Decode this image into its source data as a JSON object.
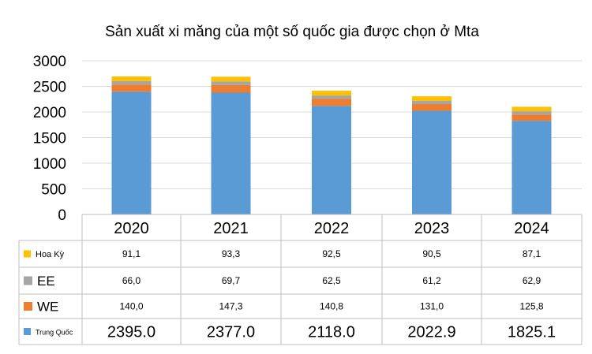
{
  "chart_data": {
    "type": "bar",
    "stacked": true,
    "title": "Sản xuất xi măng của một số quốc gia được chọn ở Mta",
    "categories": [
      "2020",
      "2021",
      "2022",
      "2023",
      "2024"
    ],
    "ylim": [
      0,
      3000
    ],
    "yticks": [
      "0",
      "500",
      "1000",
      "1500",
      "2000",
      "2500",
      "3000"
    ],
    "grid": true,
    "legend_position": "table-left",
    "series": [
      {
        "name": "Trung Quốc",
        "color": "#5B9BD5",
        "values": [
          2395.0,
          2377.0,
          2118.0,
          2022.9,
          1825.1
        ],
        "labels": [
          "2395.0",
          "2377.0",
          "2118.0",
          "2022.9",
          "1825.1"
        ]
      },
      {
        "name": "WE",
        "color": "#ED7D31",
        "values": [
          140.0,
          147.3,
          140.8,
          131.0,
          125.8
        ],
        "labels": [
          "140,0",
          "147,3",
          "140,8",
          "131,0",
          "125,8"
        ]
      },
      {
        "name": "EE",
        "color": "#A5A5A5",
        "values": [
          66.0,
          69.7,
          62.5,
          61.2,
          62.9
        ],
        "labels": [
          "66,0",
          "69,7",
          "62,5",
          "61,2",
          "62,9"
        ]
      },
      {
        "name": "Hoa Kỳ",
        "color": "#FFC000",
        "values": [
          91.1,
          93.3,
          92.5,
          90.5,
          87.1
        ],
        "labels": [
          "91,1",
          "93,3",
          "92,5",
          "90,5",
          "87,1"
        ]
      }
    ]
  }
}
